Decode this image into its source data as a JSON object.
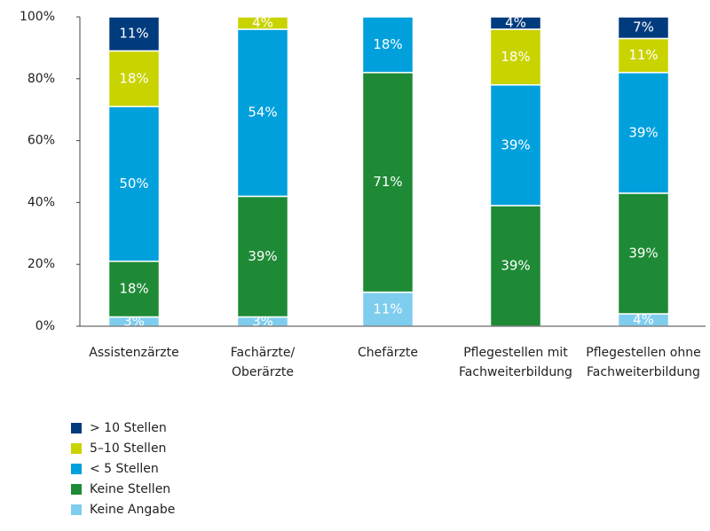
{
  "chart_data": {
    "type": "stacked_bar",
    "categories": [
      "Assistenzärzte",
      "Fachärzte/\nOberärzte",
      "Chefärzte",
      "Pflegestellen mit\nFachweiterbildung",
      "Pflegestellen ohne\nFachweiterbildung"
    ],
    "series": [
      {
        "name": "Keine Angabe",
        "color": "#7fcdee",
        "values": [
          3,
          3,
          11,
          null,
          4
        ],
        "value_labels": [
          "3%",
          "3%",
          "11%",
          null,
          "4%"
        ]
      },
      {
        "name": "Keine Stellen",
        "color": "#1e8a36",
        "values": [
          18,
          39,
          71,
          39,
          39
        ],
        "value_labels": [
          "18%",
          "39%",
          "71%",
          "39%",
          "39%"
        ]
      },
      {
        "name": "< 5 Stellen",
        "color": "#00a0dc",
        "values": [
          50,
          54,
          18,
          39,
          39
        ],
        "value_labels": [
          "50%",
          "54%",
          "18%",
          "39%",
          "39%"
        ]
      },
      {
        "name": "5–10 Stellen",
        "color": "#c9d300",
        "values": [
          18,
          4,
          null,
          18,
          11
        ],
        "value_labels": [
          "18%",
          "4%",
          null,
          "18%",
          "11%"
        ]
      },
      {
        "name": "> 10 Stellen",
        "color": "#003b7e",
        "values": [
          11,
          null,
          null,
          4,
          7
        ],
        "value_labels": [
          "11%",
          null,
          null,
          "4%",
          "7%"
        ]
      }
    ],
    "ylim": [
      0,
      100
    ],
    "yticks": [
      {
        "value": 0,
        "label": "0%"
      },
      {
        "value": 20,
        "label": "20%"
      },
      {
        "value": 40,
        "label": "40%"
      },
      {
        "value": 60,
        "label": "60%"
      },
      {
        "value": 80,
        "label": "80%"
      },
      {
        "value": 100,
        "label": "100%"
      }
    ],
    "grid": false,
    "legend": "bottom-left"
  }
}
